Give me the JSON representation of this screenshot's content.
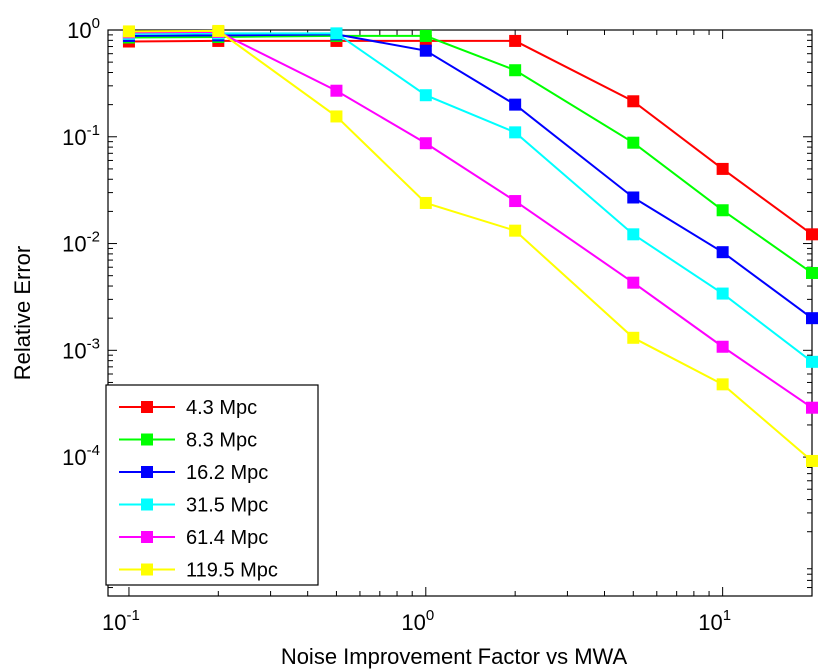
{
  "chart_data": {
    "type": "line",
    "title": "",
    "xlabel": "Noise Improvement Factor vs MWA",
    "ylabel": "Relative Error",
    "xscale": "log",
    "yscale": "log",
    "xlim": [
      0.085,
      20
    ],
    "ylim": [
      5e-06,
      1
    ],
    "x": [
      0.1,
      0.2,
      0.5,
      1,
      2,
      5,
      10,
      20
    ],
    "x_ticks": [
      {
        "value": 0.1,
        "base": "10",
        "exp": "-1"
      },
      {
        "value": 1,
        "base": "10",
        "exp": "0"
      },
      {
        "value": 10,
        "base": "10",
        "exp": "1"
      }
    ],
    "y_ticks": [
      {
        "value": 1,
        "base": "10",
        "exp": "0"
      },
      {
        "value": 0.1,
        "base": "10",
        "exp": "-1"
      },
      {
        "value": 0.01,
        "base": "10",
        "exp": "-2"
      },
      {
        "value": 0.001,
        "base": "10",
        "exp": "-3"
      },
      {
        "value": 0.0001,
        "base": "10",
        "exp": "-4"
      }
    ],
    "legend_position": "bottom-left",
    "grid": false,
    "series": [
      {
        "name": "4.3 Mpc",
        "color": "#ff0000",
        "values": [
          0.78,
          0.79,
          0.79,
          0.79,
          0.79,
          0.215,
          0.05,
          0.0122
        ]
      },
      {
        "name": "8.3 Mpc",
        "color": "#00ff00",
        "values": [
          0.85,
          0.86,
          0.88,
          0.88,
          0.42,
          0.088,
          0.0205,
          0.0053
        ]
      },
      {
        "name": "16.2 Mpc",
        "color": "#0000ff",
        "values": [
          0.88,
          0.89,
          0.91,
          0.64,
          0.2,
          0.027,
          0.0083,
          0.002
        ]
      },
      {
        "name": "31.5 Mpc",
        "color": "#00ffff",
        "values": [
          0.92,
          0.93,
          0.93,
          0.245,
          0.11,
          0.0122,
          0.0034,
          0.00078
        ]
      },
      {
        "name": "61.4 Mpc",
        "color": "#ff00ff",
        "values": [
          0.95,
          0.96,
          0.27,
          0.087,
          0.025,
          0.0043,
          0.00108,
          0.00029
        ]
      },
      {
        "name": "119.5 Mpc",
        "color": "#ffff00",
        "values": [
          0.97,
          0.98,
          0.155,
          0.024,
          0.0132,
          0.00131,
          0.00048,
          9.2e-05
        ]
      }
    ]
  }
}
